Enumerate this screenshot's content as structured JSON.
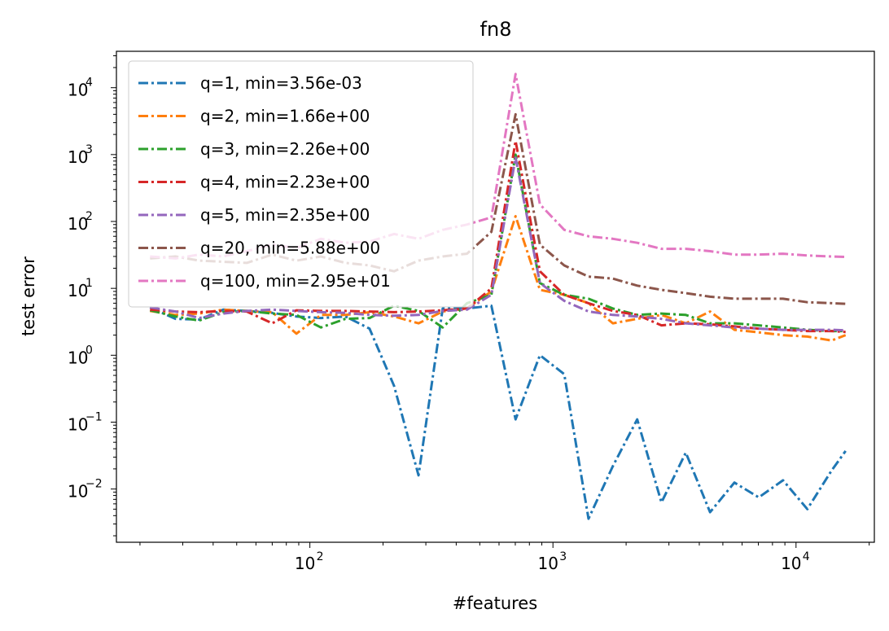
{
  "chart_data": {
    "type": "line",
    "title": "fn8",
    "xlabel": "#features",
    "ylabel": "test error",
    "xscale": "log",
    "yscale": "log",
    "xlim": [
      16,
      21000
    ],
    "ylim": [
      0.0016,
      35000
    ],
    "legend_position": "upper-left",
    "grid": false,
    "x_ticks": [
      {
        "value": 100,
        "base": "10",
        "exp": "2"
      },
      {
        "value": 1000,
        "base": "10",
        "exp": "3"
      },
      {
        "value": 10000,
        "base": "10",
        "exp": "4"
      }
    ],
    "y_ticks": [
      {
        "value": 0.01,
        "base": "10",
        "exp": "−2"
      },
      {
        "value": 0.1,
        "base": "10",
        "exp": "−1"
      },
      {
        "value": 1,
        "base": "10",
        "exp": "0"
      },
      {
        "value": 10,
        "base": "10",
        "exp": "1"
      },
      {
        "value": 100,
        "base": "10",
        "exp": "2"
      },
      {
        "value": 1000,
        "base": "10",
        "exp": "3"
      },
      {
        "value": 10000,
        "base": "10",
        "exp": "4"
      }
    ],
    "x": [
      22,
      28,
      35,
      44,
      55,
      70,
      88,
      111,
      140,
      176,
      222,
      280,
      352,
      443,
      558,
      702,
      884,
      1113,
      1401,
      1764,
      2221,
      2796,
      3520,
      4431,
      5579,
      7024,
      8842,
      11132,
      14015,
      16000
    ],
    "series": [
      {
        "name": "q=1, min=3.56e-03",
        "color": "#1f77b4",
        "values": [
          5.2,
          3.5,
          3.4,
          4.8,
          4.6,
          4.3,
          3.8,
          3.6,
          3.8,
          2.5,
          0.35,
          0.016,
          5.0,
          5.0,
          5.5,
          0.11,
          1.0,
          0.52,
          0.0036,
          0.022,
          0.11,
          0.0063,
          0.035,
          0.0045,
          0.0125,
          0.0075,
          0.0135,
          0.005,
          0.019,
          0.037
        ]
      },
      {
        "name": "q=2, min=1.66e+00",
        "color": "#ff7f0e",
        "values": [
          4.6,
          4.0,
          4.2,
          4.8,
          4.6,
          4.4,
          2.1,
          4.0,
          4.0,
          4.4,
          3.8,
          3.0,
          4.5,
          5.0,
          9.0,
          120,
          9.5,
          8.0,
          6.0,
          3.0,
          3.5,
          4.0,
          3.0,
          4.5,
          2.4,
          2.2,
          2.0,
          1.9,
          1.66,
          2.0
        ]
      },
      {
        "name": "q=3, min=2.26e+00",
        "color": "#2ca02c",
        "values": [
          4.7,
          3.8,
          3.3,
          4.4,
          4.6,
          4.2,
          4.0,
          2.6,
          3.5,
          3.6,
          5.5,
          4.6,
          2.6,
          6.0,
          8.0,
          1000,
          12,
          8.0,
          7.0,
          5.0,
          4.0,
          4.2,
          4.0,
          3.0,
          3.0,
          2.8,
          2.6,
          2.4,
          2.3,
          2.3
        ]
      },
      {
        "name": "q=4, min=2.23e+00",
        "color": "#d62728",
        "values": [
          4.8,
          4.5,
          4.4,
          4.6,
          4.5,
          3.0,
          4.7,
          4.6,
          4.6,
          4.5,
          4.4,
          4.5,
          4.7,
          5.0,
          10.0,
          1600,
          18,
          8.0,
          6.0,
          4.6,
          4.0,
          2.8,
          3.0,
          2.9,
          2.7,
          2.5,
          2.4,
          2.3,
          2.3,
          2.23
        ]
      },
      {
        "name": "q=5, min=2.35e+00",
        "color": "#9467bd",
        "values": [
          5.2,
          4.5,
          3.6,
          4.2,
          4.6,
          4.8,
          4.6,
          4.4,
          4.3,
          4.0,
          3.9,
          4.0,
          4.6,
          4.8,
          8.0,
          900,
          12,
          6.5,
          4.5,
          4.0,
          3.8,
          3.5,
          3.0,
          2.8,
          2.6,
          2.5,
          2.4,
          2.4,
          2.4,
          2.35
        ]
      },
      {
        "name": "q=20, min=5.88e+00",
        "color": "#8c564b",
        "values": [
          28,
          30,
          26,
          25,
          24,
          32,
          26,
          30,
          24,
          22,
          18,
          26,
          30,
          33,
          70,
          4000,
          45,
          22,
          15,
          14,
          11,
          9.5,
          8.5,
          7.5,
          7.0,
          7.0,
          7.0,
          6.2,
          6.0,
          5.88
        ]
      },
      {
        "name": "q=100, min=2.95e+01",
        "color": "#e377c2",
        "values": [
          30,
          28,
          32,
          30,
          36,
          45,
          40,
          55,
          48,
          50,
          65,
          55,
          75,
          90,
          115,
          16000,
          180,
          75,
          60,
          55,
          48,
          39,
          39,
          36,
          32,
          32,
          33,
          31,
          30,
          29.5
        ]
      }
    ]
  }
}
